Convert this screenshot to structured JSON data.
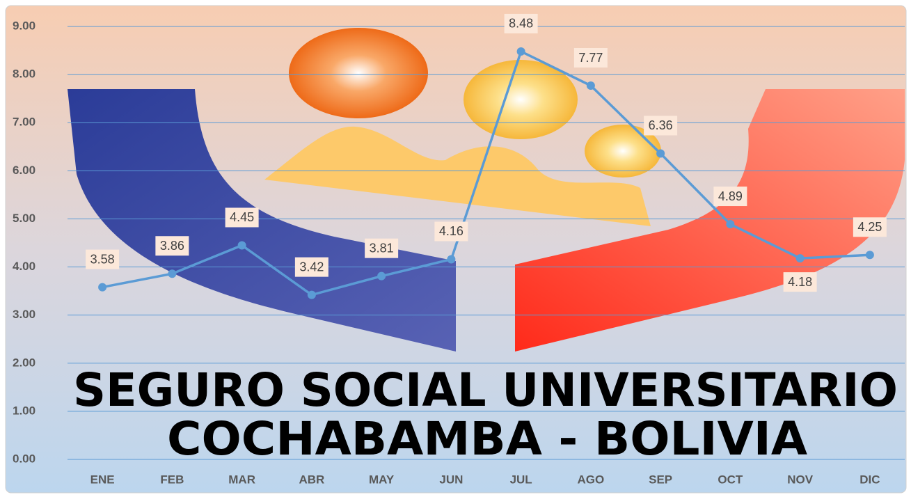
{
  "chart_data": {
    "type": "line",
    "annotations": [
      "SEGURO SOCIAL UNIVERSITARIO",
      "COCHABAMBA - BOLIVIA"
    ],
    "categories": [
      "ENE",
      "FEB",
      "MAR",
      "ABR",
      "MAY",
      "JUN",
      "JUL",
      "AGO",
      "SEP",
      "OCT",
      "NOV",
      "DIC"
    ],
    "series": [
      {
        "color": "#5b9bd5",
        "values": [
          3.58,
          3.86,
          4.45,
          3.42,
          3.81,
          4.16,
          8.48,
          7.77,
          6.36,
          4.89,
          4.18,
          4.25
        ]
      }
    ],
    "ylim": [
      0,
      9
    ],
    "yticks": [
      {
        "value": 0,
        "label": "0.00"
      },
      {
        "value": 1,
        "label": "1.00"
      },
      {
        "value": 2,
        "label": "2.00"
      },
      {
        "value": 3,
        "label": "3.00"
      },
      {
        "value": 4,
        "label": "4.00"
      },
      {
        "value": 5,
        "label": "5.00"
      },
      {
        "value": 6,
        "label": "6.00"
      },
      {
        "value": 7,
        "label": "7.00"
      },
      {
        "value": 8,
        "label": "8.00"
      },
      {
        "value": 9,
        "label": "9.00"
      }
    ],
    "grid": true
  }
}
